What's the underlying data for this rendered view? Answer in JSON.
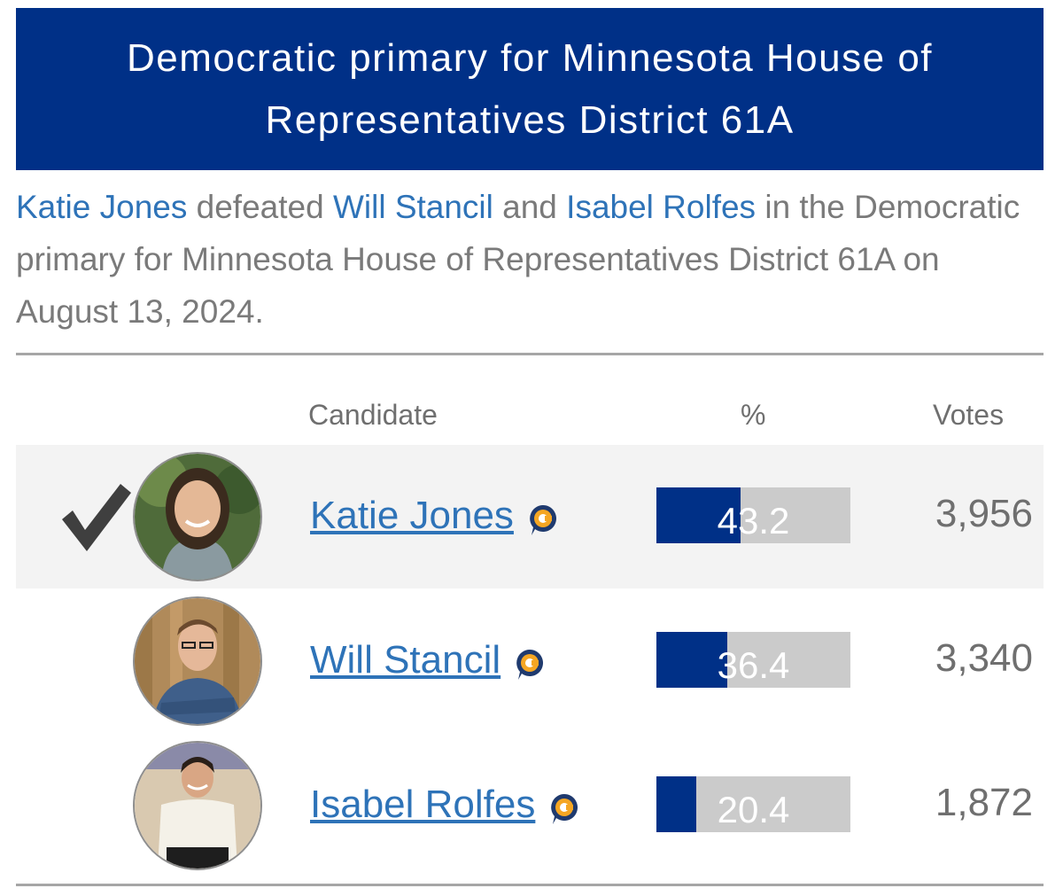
{
  "header": {
    "title": "Democratic primary for Minnesota House of Representatives District 61A"
  },
  "summary": {
    "winner": "Katie Jones",
    "text_1": " defeated ",
    "loser_1": "Will Stancil",
    "text_2": " and ",
    "loser_2": "Isabel Rolfes",
    "text_3": " in the Democratic primary for Minnesota House of Representatives District 61A on August 13, 2024."
  },
  "table": {
    "col_candidate": "Candidate",
    "col_percent": "%",
    "col_votes": "Votes"
  },
  "candidates": [
    {
      "name": "Katie Jones",
      "percent": "43.2",
      "percent_value": 43.2,
      "votes": "3,956",
      "winner": true
    },
    {
      "name": "Will Stancil",
      "percent": "36.4",
      "percent_value": 36.4,
      "votes": "3,340",
      "winner": false
    },
    {
      "name": "Isabel Rolfes",
      "percent": "20.4",
      "percent_value": 20.4,
      "votes": "1,872",
      "winner": false
    }
  ],
  "colors": {
    "brand_blue": "#003087",
    "link_blue": "#2e73b8",
    "bar_gray": "#cbcbcb",
    "icon_orange": "#f5a623"
  },
  "icons": {
    "winner_check": "checkmark-icon",
    "candidate_connection": "candidate-connection-icon"
  }
}
